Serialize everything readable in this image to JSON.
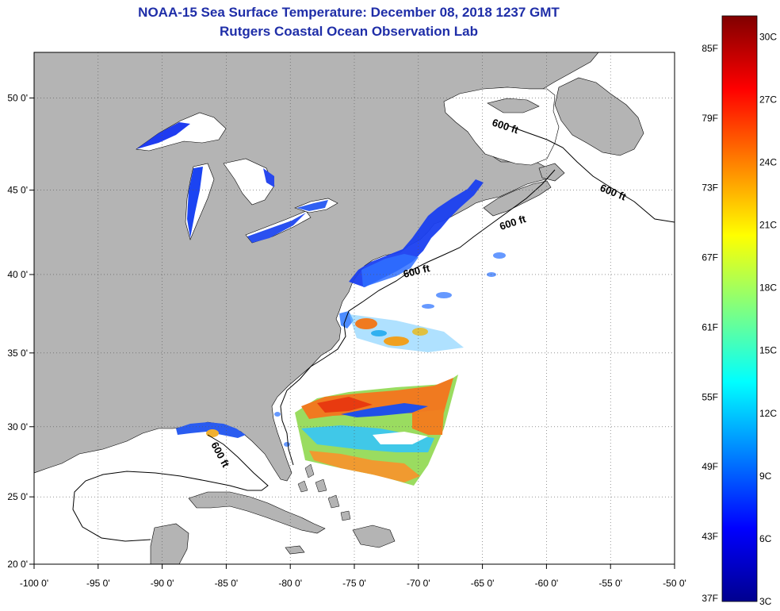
{
  "title_line1": "NOAA-15 Sea Surface Temperature:  December 08, 2018 1237 GMT",
  "title_line2": "Rutgers Coastal Ocean Observation Lab",
  "x_ticks": [
    {
      "lon": -100,
      "label": "-100 0'"
    },
    {
      "lon": -95,
      "label": "-95 0'"
    },
    {
      "lon": -90,
      "label": "-90 0'"
    },
    {
      "lon": -85,
      "label": "-85 0'"
    },
    {
      "lon": -80,
      "label": "-80 0'"
    },
    {
      "lon": -75,
      "label": "-75 0'"
    },
    {
      "lon": -70,
      "label": "-70 0'"
    },
    {
      "lon": -65,
      "label": "-65 0'"
    },
    {
      "lon": -60,
      "label": "-60 0'"
    },
    {
      "lon": -55,
      "label": "-55 0'"
    },
    {
      "lon": -50,
      "label": "-50 0'"
    }
  ],
  "y_ticks": [
    {
      "lat": 20,
      "label": "20 0'"
    },
    {
      "lat": 25,
      "label": "25 0'"
    },
    {
      "lat": 30,
      "label": "30 0'"
    },
    {
      "lat": 35,
      "label": "35 0'"
    },
    {
      "lat": 40,
      "label": "40 0'"
    },
    {
      "lat": 45,
      "label": "45 0'"
    },
    {
      "lat": 50,
      "label": "50 0'"
    }
  ],
  "isobath_label": "600 ft",
  "colorbar": {
    "min_c": 3,
    "max_c": 31,
    "celsius_labels": [
      "3C",
      "6C",
      "9C",
      "12C",
      "15C",
      "18C",
      "21C",
      "24C",
      "27C",
      "30C"
    ],
    "fahrenheit_labels": [
      "37F",
      "43F",
      "49F",
      "55F",
      "61F",
      "67F",
      "73F",
      "79F",
      "85F"
    ],
    "colors": [
      "#00008f",
      "#0000ff",
      "#0080ff",
      "#00ffff",
      "#80ff80",
      "#ffff00",
      "#ff8000",
      "#ff0000",
      "#800000"
    ]
  },
  "colors": {
    "land": "#b4b4b4",
    "ocean": "#ffffff",
    "title": "#1f2ea8"
  }
}
